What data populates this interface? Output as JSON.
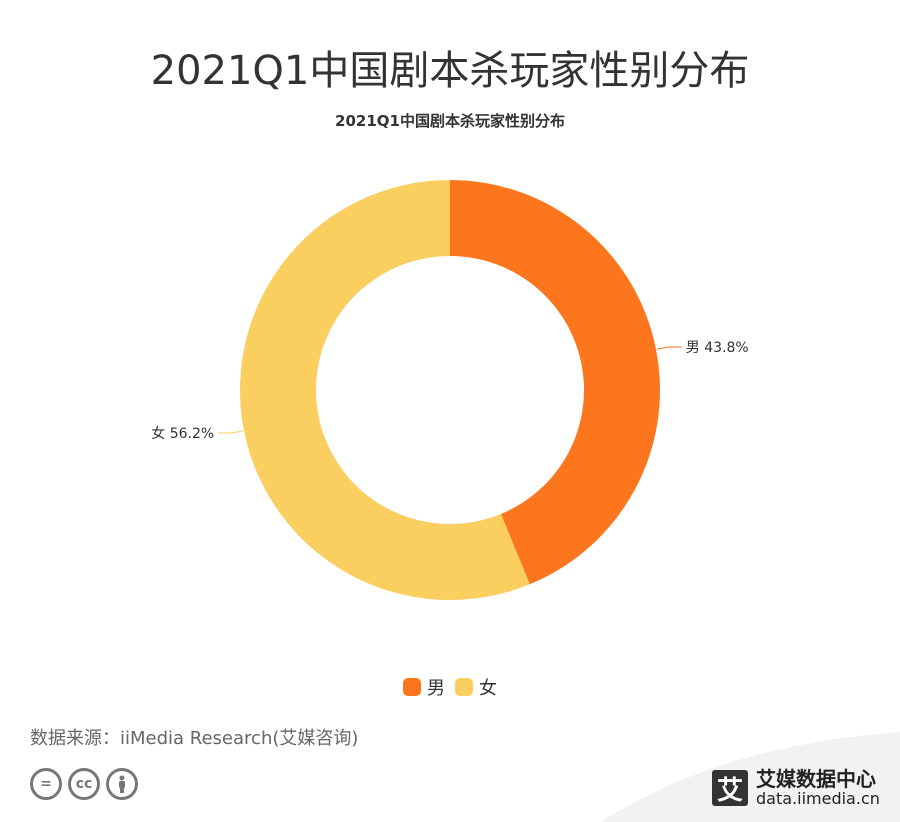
{
  "header": {
    "title": "2021Q1中国剧本杀玩家性别分布"
  },
  "chart_data": {
    "type": "pie",
    "title": "2021Q1中国剧本杀玩家性别分布",
    "categories": [
      "男",
      "女"
    ],
    "values": [
      43.8,
      56.2
    ],
    "unit": "%",
    "colors": [
      "#fd761e",
      "#fbce60"
    ],
    "data_labels": [
      "男 43.8%",
      "女 56.2%"
    ],
    "legend": {
      "position": "bottom",
      "items": [
        {
          "label": "男",
          "color": "#fd761e"
        },
        {
          "label": "女",
          "color": "#fbce60"
        }
      ]
    }
  },
  "footer": {
    "source": "数据来源：iiMedia Research(艾媒咨询)",
    "license_icons": [
      "equals-icon",
      "cc-icon",
      "person-icon"
    ],
    "brand": {
      "mark": "艾",
      "name": "艾媒数据中心",
      "url": "data.iimedia.cn"
    }
  }
}
